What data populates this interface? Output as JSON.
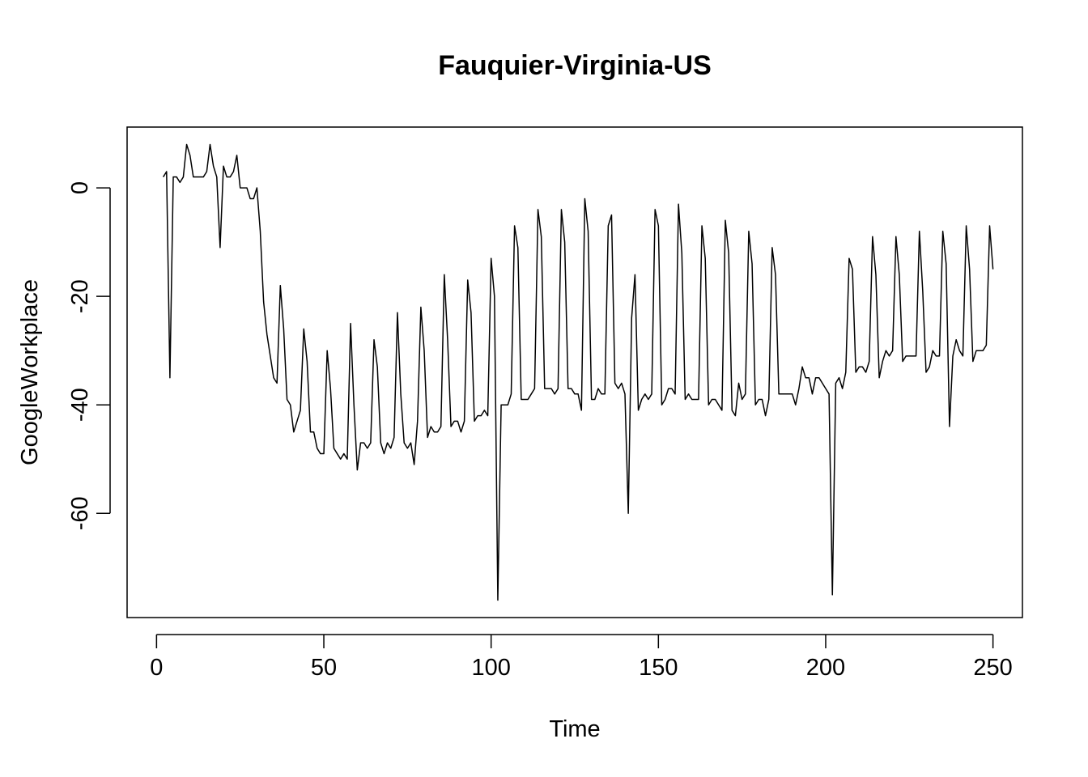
{
  "chart_data": {
    "type": "line",
    "title": "Fauquier-Virginia-US",
    "xlabel": "Time",
    "ylabel": "GoogleWorkplace",
    "xlim": [
      -8.8,
      258.8
    ],
    "ylim": [
      -79.2,
      11.2
    ],
    "xticks": [
      0,
      50,
      100,
      150,
      200,
      250
    ],
    "yticks": [
      0,
      -20,
      -40,
      -60
    ],
    "x_tick_labels": [
      "0",
      "50",
      "100",
      "150",
      "200",
      "250"
    ],
    "y_tick_labels": [
      "0",
      "-20",
      "-40",
      "-60"
    ],
    "grid": false,
    "legend": "none",
    "line_color": "#000000",
    "x_start": 2,
    "series": [
      {
        "values": [
          2,
          3,
          -35,
          2,
          2,
          1,
          2,
          8,
          6,
          2,
          2,
          2,
          2,
          3,
          8,
          4,
          2,
          -11,
          4,
          2,
          2,
          3,
          6,
          0,
          0,
          0,
          -2,
          -2,
          0,
          -8,
          -21,
          -27,
          -31,
          -35,
          -36,
          -18,
          -26,
          -39,
          -40,
          -45,
          -43,
          -41,
          -26,
          -32,
          -45,
          -45,
          -48,
          -49,
          -49,
          -30,
          -37,
          -48,
          -49,
          -50,
          -49,
          -50,
          -25,
          -40,
          -52,
          -47,
          -47,
          -48,
          -47,
          -28,
          -33,
          -47,
          -49,
          -47,
          -48,
          -46,
          -23,
          -38,
          -47,
          -48,
          -47,
          -51,
          -43,
          -22,
          -30,
          -46,
          -44,
          -45,
          -45,
          -44,
          -16,
          -28,
          -44,
          -43,
          -43,
          -45,
          -43,
          -17,
          -23,
          -43,
          -42,
          -42,
          -41,
          -42,
          -13,
          -20,
          -76,
          -40,
          -40,
          -40,
          -38,
          -7,
          -11,
          -39,
          -39,
          -39,
          -38,
          -37,
          -4,
          -9,
          -37,
          -37,
          -37,
          -38,
          -37,
          -4,
          -10,
          -37,
          -37,
          -38,
          -38,
          -41,
          -2,
          -8,
          -39,
          -39,
          -37,
          -38,
          -38,
          -7,
          -5,
          -36,
          -37,
          -36,
          -38,
          -60,
          -24,
          -16,
          -41,
          -39,
          -38,
          -39,
          -38,
          -4,
          -7,
          -40,
          -39,
          -37,
          -37,
          -38,
          -3,
          -12,
          -39,
          -38,
          -39,
          -39,
          -39,
          -7,
          -13,
          -40,
          -39,
          -39,
          -40,
          -41,
          -6,
          -12,
          -41,
          -42,
          -36,
          -39,
          -38,
          -8,
          -14,
          -40,
          -39,
          -39,
          -42,
          -39,
          -11,
          -16,
          -38,
          -38,
          -38,
          -38,
          -38,
          -40,
          -37,
          -33,
          -35,
          -35,
          -38,
          -35,
          -35,
          -36,
          -37,
          -38,
          -75,
          -36,
          -35,
          -37,
          -34,
          -13,
          -15,
          -34,
          -33,
          -33,
          -34,
          -32,
          -9,
          -16,
          -35,
          -32,
          -30,
          -31,
          -30,
          -9,
          -16,
          -32,
          -31,
          -31,
          -31,
          -31,
          -8,
          -19,
          -34,
          -33,
          -30,
          -31,
          -31,
          -8,
          -14,
          -44,
          -31,
          -28,
          -30,
          -31,
          -7,
          -15,
          -32,
          -30,
          -30,
          -30,
          -29,
          -7,
          -15
        ]
      }
    ]
  }
}
